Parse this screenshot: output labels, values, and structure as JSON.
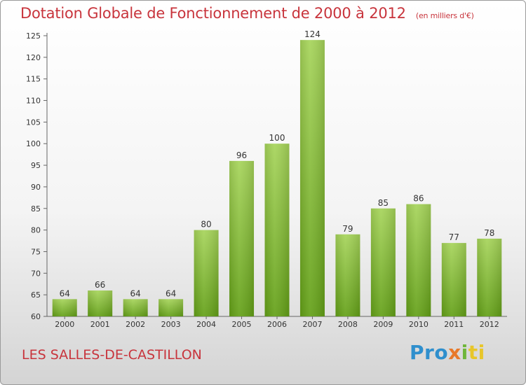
{
  "title": "Dotation Globale de Fonctionnement de 2000 à 2012",
  "subtitle": "(en milliers d'€)",
  "commune": "LES SALLES-DE-CASTILLON",
  "logo": {
    "p1": "Pro",
    "p2": "x",
    "p3": "i",
    "p4": "ti"
  },
  "colors": {
    "bar_light": "#a6d45a",
    "bar_dark": "#63a017",
    "title": "#c8343c"
  },
  "chart_data": {
    "type": "bar",
    "title": "Dotation Globale de Fonctionnement de 2000 à 2012",
    "subtitle": "(en milliers d'€)",
    "categories": [
      "2000",
      "2001",
      "2002",
      "2003",
      "2004",
      "2005",
      "2006",
      "2007",
      "2008",
      "2009",
      "2010",
      "2011",
      "2012"
    ],
    "values": [
      64,
      66,
      64,
      64,
      80,
      96,
      100,
      124,
      79,
      85,
      86,
      77,
      78
    ],
    "ylim": [
      60,
      125
    ],
    "yticks": [
      60,
      65,
      70,
      75,
      80,
      85,
      90,
      95,
      100,
      105,
      110,
      115,
      120,
      125
    ],
    "xlabel": "",
    "ylabel": "",
    "grid": false,
    "legend": "none"
  }
}
